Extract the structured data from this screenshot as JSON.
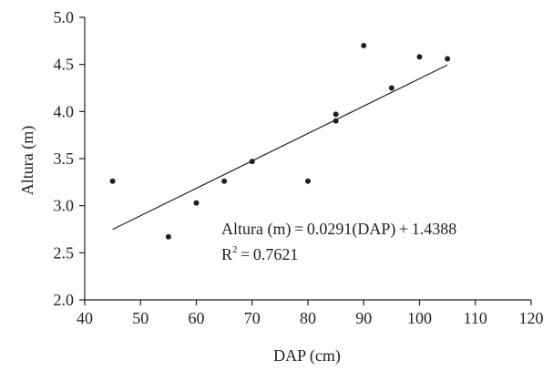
{
  "chart_data": {
    "type": "scatter",
    "xlabel": "DAP (cm)",
    "ylabel": "Altura (m)",
    "xlim": [
      40,
      120
    ],
    "ylim": [
      2.0,
      5.0
    ],
    "x_ticks": [
      40,
      50,
      60,
      70,
      80,
      90,
      100,
      110,
      120
    ],
    "y_ticks": [
      2.0,
      2.5,
      3.0,
      3.5,
      4.0,
      4.5,
      5.0
    ],
    "x_tick_labels": [
      "40",
      "50",
      "60",
      "70",
      "80",
      "90",
      "100",
      "110",
      "120"
    ],
    "y_tick_labels": [
      "2.0",
      "2.5",
      "3.0",
      "3.5",
      "4.0",
      "4.5",
      "5.0"
    ],
    "grid": false,
    "points": [
      {
        "x": 45,
        "y": 3.26
      },
      {
        "x": 55,
        "y": 2.67
      },
      {
        "x": 60,
        "y": 3.03
      },
      {
        "x": 65,
        "y": 3.26
      },
      {
        "x": 70,
        "y": 3.47
      },
      {
        "x": 80,
        "y": 3.26
      },
      {
        "x": 85,
        "y": 3.9
      },
      {
        "x": 85,
        "y": 3.97
      },
      {
        "x": 90,
        "y": 4.7
      },
      {
        "x": 95,
        "y": 4.25
      },
      {
        "x": 100,
        "y": 4.58
      },
      {
        "x": 105,
        "y": 4.56
      }
    ],
    "trendline": {
      "slope": 0.0291,
      "intercept": 1.4388,
      "x_range": [
        45,
        105
      ]
    },
    "equation_text": "Altura (m) = 0.0291(DAP) + 1.4388",
    "r2_label": "R",
    "r2_sup": "2",
    "r2_value": " = 0.7621",
    "colors": {
      "points": "#231f20",
      "line": "#231f20",
      "axis": "#231f20"
    }
  }
}
